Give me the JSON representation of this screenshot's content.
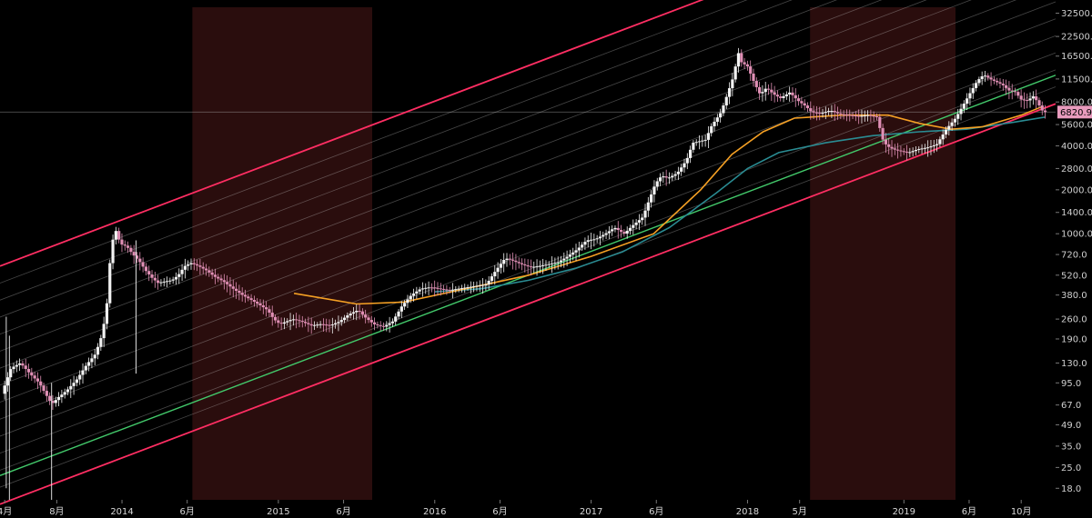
{
  "chart_data": {
    "type": "candlestick",
    "scale": "log",
    "ylim": [
      15,
      40000
    ],
    "y_ticks": [
      18.0,
      25.0,
      35.0,
      49.0,
      67.0,
      95.0,
      130.0,
      190.0,
      260.0,
      380.0,
      520.0,
      720.0,
      1000.0,
      1400.0,
      2000.0,
      2800.0,
      4000.0,
      5600.0,
      8000.0,
      11500.0,
      16500.0,
      22500.0,
      32500.0
    ],
    "y_tick_labels": [
      "18.0",
      "25.0",
      "35.0",
      "49.0",
      "67.0",
      "95.0",
      "130.0",
      "190.0",
      "260.0",
      "380.0",
      "520.0",
      "720.0",
      "1000.0",
      "1400.0",
      "2000.0",
      "2800.0",
      "4000.0",
      "5600.0",
      "8000.0",
      "11500.0",
      "16500.0",
      "22500.0",
      "32500.0"
    ],
    "x_ticks": [
      {
        "label": "4月",
        "t": 2013.25
      },
      {
        "label": "8月",
        "t": 2013.583
      },
      {
        "label": "2014",
        "t": 2014.0
      },
      {
        "label": "6月",
        "t": 2014.417
      },
      {
        "label": "2015",
        "t": 2015.0
      },
      {
        "label": "6月",
        "t": 2015.417
      },
      {
        "label": "2016",
        "t": 2016.0
      },
      {
        "label": "6月",
        "t": 2016.417
      },
      {
        "label": "2017",
        "t": 2017.0
      },
      {
        "label": "6月",
        "t": 2017.417
      },
      {
        "label": "2018",
        "t": 2018.0
      },
      {
        "label": "5月",
        "t": 2018.333
      },
      {
        "label": "2019",
        "t": 2019.0
      },
      {
        "label": "6月",
        "t": 2019.417
      },
      {
        "label": "10月",
        "t": 2019.75
      }
    ],
    "xlim": [
      2013.22,
      2019.97
    ],
    "last_price": "6820.9",
    "last_price_value": 6820.9,
    "bear_zones": [
      [
        2014.45,
        2015.6
      ],
      [
        2018.4,
        2019.33
      ]
    ],
    "channel": {
      "start_year": 2013.22,
      "lower_start": 14,
      "upper_start": 600,
      "growth_per_year": 2.55,
      "fan_lines": 14
    },
    "regression_line": {
      "start_year": 2013.22,
      "start_value": 22,
      "growth_per_year": 2.55
    },
    "ma_orange": [
      [
        2015.1,
        390
      ],
      [
        2015.5,
        330
      ],
      [
        2015.8,
        340
      ],
      [
        2016.2,
        420
      ],
      [
        2016.6,
        520
      ],
      [
        2017.0,
        700
      ],
      [
        2017.4,
        1000
      ],
      [
        2017.7,
        2000
      ],
      [
        2017.9,
        3500
      ],
      [
        2018.1,
        5000
      ],
      [
        2018.3,
        6200
      ],
      [
        2018.6,
        6500
      ],
      [
        2018.9,
        6500
      ],
      [
        2019.1,
        5700
      ],
      [
        2019.3,
        5200
      ],
      [
        2019.5,
        5400
      ],
      [
        2019.75,
        6500
      ],
      [
        2019.88,
        7400
      ]
    ],
    "ma_teal": [
      [
        2016.0,
        400
      ],
      [
        2016.3,
        420
      ],
      [
        2016.6,
        480
      ],
      [
        2016.9,
        580
      ],
      [
        2017.2,
        750
      ],
      [
        2017.5,
        1100
      ],
      [
        2017.8,
        1900
      ],
      [
        2018.0,
        2800
      ],
      [
        2018.2,
        3600
      ],
      [
        2018.5,
        4200
      ],
      [
        2018.8,
        4700
      ],
      [
        2019.1,
        5000
      ],
      [
        2019.4,
        5200
      ],
      [
        2019.7,
        5800
      ],
      [
        2019.9,
        6300
      ]
    ],
    "price_path": [
      [
        2013.24,
        80
      ],
      [
        2013.3,
        120
      ],
      [
        2013.36,
        130
      ],
      [
        2013.42,
        110
      ],
      [
        2013.48,
        95
      ],
      [
        2013.52,
        80
      ],
      [
        2013.56,
        68
      ],
      [
        2013.6,
        75
      ],
      [
        2013.66,
        85
      ],
      [
        2013.72,
        100
      ],
      [
        2013.78,
        125
      ],
      [
        2013.84,
        150
      ],
      [
        2013.88,
        200
      ],
      [
        2013.91,
        300
      ],
      [
        2013.93,
        600
      ],
      [
        2013.95,
        900
      ],
      [
        2013.97,
        1050
      ],
      [
        2014.0,
        850
      ],
      [
        2014.04,
        820
      ],
      [
        2014.08,
        720
      ],
      [
        2014.12,
        650
      ],
      [
        2014.16,
        560
      ],
      [
        2014.2,
        500
      ],
      [
        2014.24,
        460
      ],
      [
        2014.28,
        470
      ],
      [
        2014.33,
        480
      ],
      [
        2014.37,
        520
      ],
      [
        2014.41,
        600
      ],
      [
        2014.45,
        630
      ],
      [
        2014.5,
        600
      ],
      [
        2014.55,
        560
      ],
      [
        2014.6,
        510
      ],
      [
        2014.66,
        470
      ],
      [
        2014.72,
        420
      ],
      [
        2014.78,
        380
      ],
      [
        2014.84,
        350
      ],
      [
        2014.9,
        320
      ],
      [
        2014.94,
        300
      ],
      [
        2014.98,
        260
      ],
      [
        2015.02,
        240
      ],
      [
        2015.06,
        250
      ],
      [
        2015.1,
        260
      ],
      [
        2015.16,
        250
      ],
      [
        2015.22,
        235
      ],
      [
        2015.28,
        240
      ],
      [
        2015.34,
        235
      ],
      [
        2015.4,
        250
      ],
      [
        2015.46,
        280
      ],
      [
        2015.52,
        300
      ],
      [
        2015.56,
        270
      ],
      [
        2015.62,
        240
      ],
      [
        2015.68,
        230
      ],
      [
        2015.74,
        250
      ],
      [
        2015.8,
        320
      ],
      [
        2015.86,
        380
      ],
      [
        2015.92,
        420
      ],
      [
        2015.98,
        430
      ],
      [
        2016.04,
        420
      ],
      [
        2016.1,
        410
      ],
      [
        2016.16,
        420
      ],
      [
        2016.22,
        430
      ],
      [
        2016.28,
        440
      ],
      [
        2016.34,
        450
      ],
      [
        2016.4,
        560
      ],
      [
        2016.46,
        680
      ],
      [
        2016.5,
        660
      ],
      [
        2016.56,
        620
      ],
      [
        2016.62,
        590
      ],
      [
        2016.68,
        600
      ],
      [
        2016.74,
        620
      ],
      [
        2016.8,
        640
      ],
      [
        2016.86,
        700
      ],
      [
        2016.92,
        780
      ],
      [
        2016.98,
        900
      ],
      [
        2017.04,
        920
      ],
      [
        2017.1,
        1000
      ],
      [
        2017.16,
        1100
      ],
      [
        2017.22,
        1000
      ],
      [
        2017.28,
        1150
      ],
      [
        2017.34,
        1300
      ],
      [
        2017.38,
        1700
      ],
      [
        2017.42,
        2200
      ],
      [
        2017.46,
        2500
      ],
      [
        2017.5,
        2400
      ],
      [
        2017.56,
        2600
      ],
      [
        2017.62,
        3200
      ],
      [
        2017.66,
        4200
      ],
      [
        2017.7,
        4300
      ],
      [
        2017.74,
        4400
      ],
      [
        2017.78,
        5500
      ],
      [
        2017.84,
        6800
      ],
      [
        2017.88,
        9000
      ],
      [
        2017.92,
        12000
      ],
      [
        2017.95,
        17500
      ],
      [
        2017.97,
        15000
      ],
      [
        2018.01,
        14000
      ],
      [
        2018.05,
        11000
      ],
      [
        2018.09,
        9000
      ],
      [
        2018.13,
        10000
      ],
      [
        2018.18,
        9000
      ],
      [
        2018.22,
        8500
      ],
      [
        2018.28,
        9300
      ],
      [
        2018.33,
        8200
      ],
      [
        2018.38,
        7500
      ],
      [
        2018.42,
        6800
      ],
      [
        2018.48,
        6700
      ],
      [
        2018.54,
        7000
      ],
      [
        2018.6,
        6600
      ],
      [
        2018.66,
        6500
      ],
      [
        2018.72,
        6400
      ],
      [
        2018.78,
        6500
      ],
      [
        2018.84,
        6300
      ],
      [
        2018.87,
        4500
      ],
      [
        2018.9,
        4000
      ],
      [
        2018.94,
        3800
      ],
      [
        2018.98,
        3700
      ],
      [
        2019.04,
        3600
      ],
      [
        2019.1,
        3800
      ],
      [
        2019.16,
        3900
      ],
      [
        2019.22,
        4100
      ],
      [
        2019.28,
        5200
      ],
      [
        2019.34,
        6200
      ],
      [
        2019.4,
        8000
      ],
      [
        2019.44,
        9500
      ],
      [
        2019.48,
        11200
      ],
      [
        2019.52,
        12300
      ],
      [
        2019.56,
        11500
      ],
      [
        2019.6,
        11000
      ],
      [
        2019.64,
        10500
      ],
      [
        2019.68,
        9600
      ],
      [
        2019.72,
        9400
      ],
      [
        2019.76,
        8300
      ],
      [
        2019.8,
        8200
      ],
      [
        2019.84,
        8800
      ],
      [
        2019.88,
        7400
      ],
      [
        2019.9,
        6820.9
      ]
    ]
  }
}
